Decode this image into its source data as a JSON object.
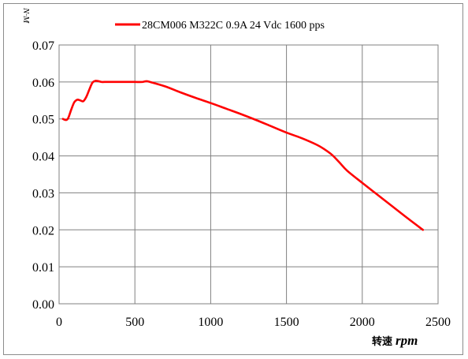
{
  "chart_data": {
    "type": "line",
    "title": "",
    "ylabel": "N·M",
    "xlabel": "转速",
    "xlabel_unit": "rpm",
    "xlim": [
      0,
      2500
    ],
    "ylim": [
      0,
      0.07
    ],
    "xticks": [
      0,
      500,
      1000,
      1500,
      2000,
      2500
    ],
    "yticks": [
      0.0,
      0.01,
      0.02,
      0.03,
      0.04,
      0.05,
      0.06,
      0.07
    ],
    "xtick_labels": [
      "0",
      "500",
      "1000",
      "1500",
      "2000",
      "2500"
    ],
    "ytick_labels": [
      "0.00",
      "0.01",
      "0.02",
      "0.03",
      "0.04",
      "0.05",
      "0.06",
      "0.07"
    ],
    "grid": true,
    "legend_position": "top",
    "series": [
      {
        "name": "28CM006 M322C 0.9A 24 Vdc  1600 pps",
        "color": "#ff0000",
        "x": [
          25,
          45,
          60,
          80,
          100,
          120,
          140,
          160,
          180,
          200,
          220,
          240,
          260,
          280,
          300,
          350,
          400,
          450,
          500,
          550,
          575,
          600,
          700,
          800,
          900,
          1000,
          1100,
          1200,
          1300,
          1400,
          1500,
          1600,
          1700,
          1750,
          1800,
          1850,
          1900,
          2000,
          2100,
          2200,
          2300,
          2400
        ],
        "y": [
          0.05,
          0.0497,
          0.0502,
          0.0525,
          0.0545,
          0.0552,
          0.055,
          0.0548,
          0.056,
          0.058,
          0.0598,
          0.0603,
          0.0602,
          0.06,
          0.06,
          0.06,
          0.06,
          0.06,
          0.06,
          0.06,
          0.0602,
          0.06,
          0.0588,
          0.0572,
          0.0557,
          0.0543,
          0.0528,
          0.0513,
          0.0497,
          0.048,
          0.0463,
          0.0448,
          0.043,
          0.0418,
          0.0403,
          0.0382,
          0.036,
          0.0327,
          0.0295,
          0.0263,
          0.0231,
          0.02
        ]
      }
    ]
  }
}
